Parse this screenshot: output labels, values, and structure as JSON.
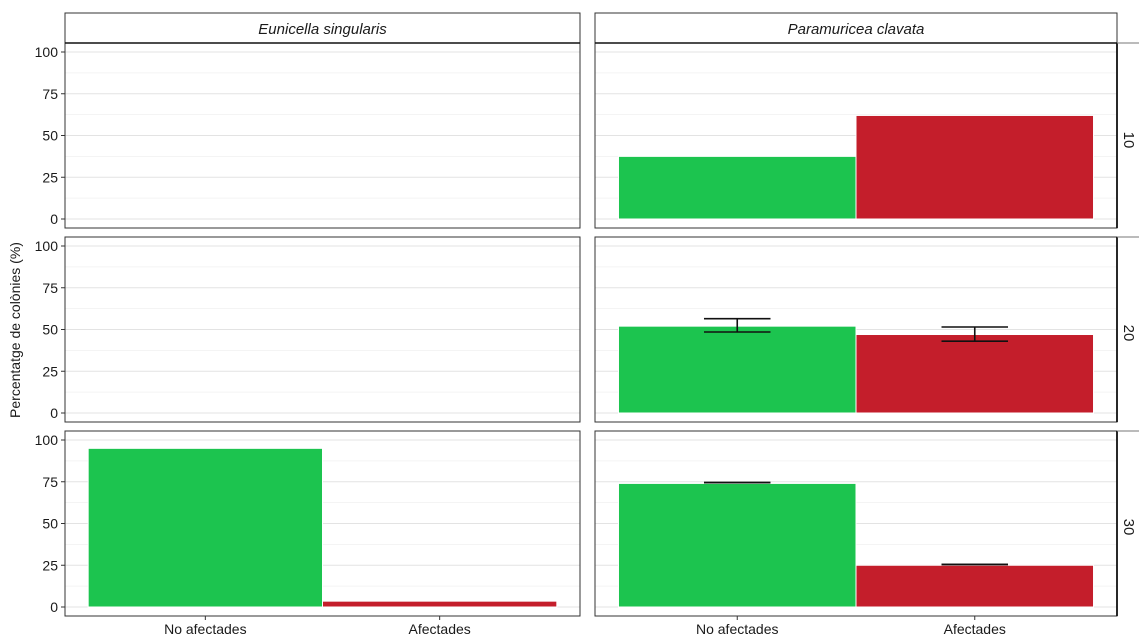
{
  "chart_data": {
    "type": "bar",
    "title": "",
    "ylabel": "Percentatge de colònies (%)",
    "xlabel": "",
    "ylim": [
      0,
      100
    ],
    "yticks": [
      0,
      25,
      50,
      75,
      100
    ],
    "categories": [
      "No afectades",
      "Afectades"
    ],
    "column_facets": [
      "Eunicella singularis",
      "Paramuricea clavata"
    ],
    "row_facets": [
      "10",
      "20",
      "30"
    ],
    "colors": {
      "No afectades": "#1cc44f",
      "Afectades": "#c41e2b"
    },
    "grid": true,
    "legend": "none",
    "panels": [
      {
        "column": "Eunicella singularis",
        "row": "10",
        "values": [
          null,
          null
        ],
        "error_low": [
          null,
          null
        ],
        "error_high": [
          null,
          null
        ]
      },
      {
        "column": "Paramuricea clavata",
        "row": "10",
        "values": [
          37.5,
          62
        ],
        "error_low": [
          null,
          null
        ],
        "error_high": [
          null,
          null
        ]
      },
      {
        "column": "Eunicella singularis",
        "row": "20",
        "values": [
          null,
          null
        ],
        "error_low": [
          null,
          null
        ],
        "error_high": [
          null,
          null
        ]
      },
      {
        "column": "Paramuricea clavata",
        "row": "20",
        "values": [
          52,
          47
        ],
        "error_low": [
          48.5,
          43
        ],
        "error_high": [
          56.5,
          51.5
        ]
      },
      {
        "column": "Eunicella singularis",
        "row": "30",
        "values": [
          95,
          3.5
        ],
        "error_low": [
          null,
          null
        ],
        "error_high": [
          null,
          null
        ]
      },
      {
        "column": "Paramuricea clavata",
        "row": "30",
        "values": [
          74,
          25
        ],
        "error_low": [
          74.5,
          25.5
        ],
        "error_high": [
          74.5,
          25.5
        ]
      }
    ]
  }
}
